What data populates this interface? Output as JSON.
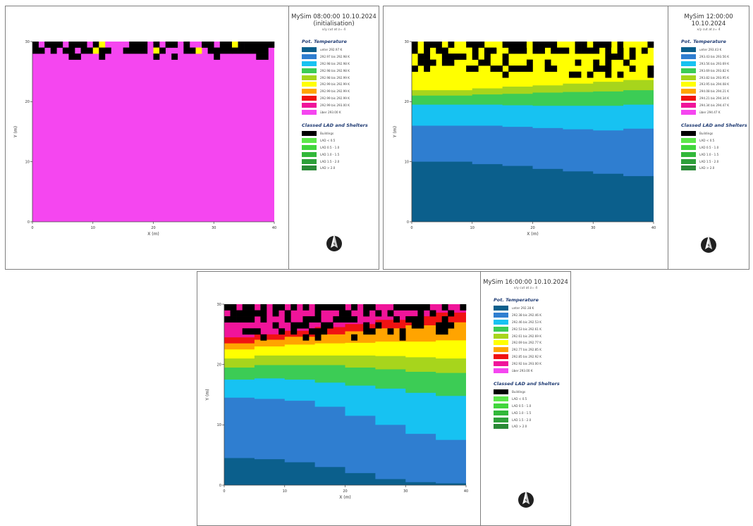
{
  "maps": [
    {
      "title": "MySim 08:00:00 10.10.2024",
      "subtitle": "(initialisation)",
      "cut_label": "x/y cut at z= 4",
      "legend_title_temp": "Pot. Temperature",
      "legend_temp": [
        {
          "label": "unter 292.97 K",
          "color": "#0b5f8c"
        },
        {
          "label": "292.97 bis 292.98 K",
          "color": "#2f7ed0"
        },
        {
          "label": "292.98 bis 292.98 K",
          "color": "#17c2f2"
        },
        {
          "label": "292.98 bis 292.98 K",
          "color": "#3ccc55"
        },
        {
          "label": "292.98 bis 292.99 K",
          "color": "#a7d51c"
        },
        {
          "label": "292.99 bis 292.99 K",
          "color": "#ffff00"
        },
        {
          "label": "292.99 bis 292.99 K",
          "color": "#ffa400"
        },
        {
          "label": "292.99 bis 292.99 K",
          "color": "#f01212"
        },
        {
          "label": "292.99 bis 293.00 K",
          "color": "#f0149a"
        },
        {
          "label": "über 293.00 K",
          "color": "#f546f0"
        }
      ],
      "legend_title_lad": "Classed LAD and Shelters",
      "legend_lad": [
        {
          "label": "Buildings",
          "color": "#000000"
        },
        {
          "label": "LAD < 0.5",
          "color": "#5de84a"
        },
        {
          "label": "LAD 0.5 - 1.0",
          "color": "#41d63c"
        },
        {
          "label": "LAD 1.0 - 1.5",
          "color": "#32b83a"
        },
        {
          "label": "LAD 1.5 - 2.0",
          "color": "#2ea03a"
        },
        {
          "label": "LAD > 2.0",
          "color": "#2b8a37"
        }
      ],
      "chart_data": {
        "type": "heatmap",
        "xlabel": "X (m)",
        "ylabel": "Y (m)",
        "xlim": [
          0,
          40
        ],
        "ylim": [
          0,
          30
        ],
        "xticks": [
          0,
          10,
          20,
          30,
          40
        ],
        "yticks": [
          0,
          10,
          20,
          30
        ],
        "uniform_value": "über 293.00 K",
        "bands": [],
        "north_arrow": "N"
      }
    },
    {
      "title": "MySim 12:00:00 10.10.2024",
      "subtitle": "",
      "cut_label": "x/y cut at z= 4",
      "legend_title_temp": "Pot. Temperature",
      "legend_temp": [
        {
          "label": "unter 293.43 K",
          "color": "#0b5f8c"
        },
        {
          "label": "293.43 bis 293.56 K",
          "color": "#2f7ed0"
        },
        {
          "label": "293.56 bis 293.69 K",
          "color": "#17c2f2"
        },
        {
          "label": "293.69 bis 293.82 K",
          "color": "#3ccc55"
        },
        {
          "label": "293.82 bis 293.95 K",
          "color": "#a7d51c"
        },
        {
          "label": "293.95 bis 294.08 K",
          "color": "#ffff00"
        },
        {
          "label": "294.08 bis 294.21 K",
          "color": "#ffa400"
        },
        {
          "label": "294.21 bis 294.34 K",
          "color": "#f01212"
        },
        {
          "label": "294.34 bis 294.47 K",
          "color": "#f0149a"
        },
        {
          "label": "über 294.47 K",
          "color": "#f546f0"
        }
      ],
      "legend_title_lad": "Classed LAD and Shelters",
      "legend_lad": [
        {
          "label": "Buildings",
          "color": "#000000"
        },
        {
          "label": "LAD < 0.5",
          "color": "#5de84a"
        },
        {
          "label": "LAD 0.5 - 1.0",
          "color": "#41d63c"
        },
        {
          "label": "LAD 1.0 - 1.5",
          "color": "#32b83a"
        },
        {
          "label": "LAD 1.5 - 2.0",
          "color": "#2ea03a"
        },
        {
          "label": "LAD > 2.0",
          "color": "#2b8a37"
        }
      ],
      "chart_data": {
        "type": "heatmap",
        "xlabel": "X (m)",
        "ylabel": "Y (m)",
        "xlim": [
          0,
          40
        ],
        "ylim": [
          0,
          30
        ],
        "xticks": [
          0,
          10,
          20,
          30,
          40
        ],
        "yticks": [
          0,
          10,
          20,
          30
        ],
        "band_x": [
          0,
          5,
          10,
          15,
          20,
          25,
          30,
          35,
          40
        ],
        "bands": [
          {
            "class": 0,
            "top_y": [
              10.0,
              10.0,
              9.6,
              9.3,
              8.8,
              8.4,
              8.0,
              7.6,
              7.3
            ]
          },
          {
            "class": 1,
            "top_y": [
              16.0,
              16.0,
              16.0,
              15.8,
              15.6,
              15.4,
              15.2,
              15.5,
              16.0
            ]
          },
          {
            "class": 2,
            "top_y": [
              19.5,
              19.5,
              19.5,
              19.4,
              19.3,
              19.3,
              19.3,
              19.5,
              19.7
            ]
          },
          {
            "class": 3,
            "top_y": [
              21.0,
              21.0,
              21.2,
              21.3,
              21.5,
              21.6,
              21.7,
              21.9,
              22.0
            ]
          },
          {
            "class": 4,
            "top_y": [
              21.9,
              21.9,
              22.2,
              22.5,
              22.7,
              23.0,
              23.3,
              23.6,
              23.9
            ]
          },
          {
            "class": 5,
            "top_y": [
              30,
              30,
              30,
              30,
              30,
              30,
              30,
              30,
              30
            ]
          },
          {
            "class": 6,
            "top_y": [
              30,
              30,
              30,
              30,
              30,
              30,
              30,
              30,
              30
            ]
          },
          {
            "class": 7,
            "top_y": [
              30,
              30,
              30,
              30,
              30,
              30,
              30,
              30,
              30
            ]
          },
          {
            "class": 8,
            "top_y": [
              30,
              30,
              30,
              30,
              30,
              30,
              30,
              30,
              30
            ]
          }
        ],
        "north_arrow": "N"
      }
    },
    {
      "title": "MySim 16:00:00 10.10.2024",
      "subtitle": "",
      "cut_label": "x/y cut at z= 4",
      "legend_title_temp": "Pot. Temperature",
      "legend_temp": [
        {
          "label": "unter 292.38 K",
          "color": "#0b5f8c"
        },
        {
          "label": "292.38 bis 292.46 K",
          "color": "#2f7ed0"
        },
        {
          "label": "292.46 bis 292.53 K",
          "color": "#17c2f2"
        },
        {
          "label": "292.53 bis 292.61 K",
          "color": "#3ccc55"
        },
        {
          "label": "292.61 bis 292.69 K",
          "color": "#a7d51c"
        },
        {
          "label": "292.69 bis 292.77 K",
          "color": "#ffff00"
        },
        {
          "label": "292.77 bis 292.85 K",
          "color": "#ffa400"
        },
        {
          "label": "292.85 bis 292.92 K",
          "color": "#f01212"
        },
        {
          "label": "292.92 bis 293.00 K",
          "color": "#f0149a"
        },
        {
          "label": "über 293.00 K",
          "color": "#f546f0"
        }
      ],
      "legend_title_lad": "Classed LAD and Shelters",
      "legend_lad": [
        {
          "label": "Buildings",
          "color": "#000000"
        },
        {
          "label": "LAD < 0.5",
          "color": "#5de84a"
        },
        {
          "label": "LAD 0.5 - 1.0",
          "color": "#41d63c"
        },
        {
          "label": "LAD 1.0 - 1.5",
          "color": "#32b83a"
        },
        {
          "label": "LAD 1.5 - 2.0",
          "color": "#2ea03a"
        },
        {
          "label": "LAD > 2.0",
          "color": "#2b8a37"
        }
      ],
      "chart_data": {
        "type": "heatmap",
        "xlabel": "X (m)",
        "ylabel": "Y (m)",
        "xlim": [
          0,
          40
        ],
        "ylim": [
          0,
          30
        ],
        "xticks": [
          0,
          10,
          20,
          30,
          40
        ],
        "yticks": [
          0,
          10,
          20,
          30
        ],
        "band_x": [
          0,
          5,
          10,
          15,
          20,
          25,
          30,
          35,
          40
        ],
        "bands": [
          {
            "class": 0,
            "top_y": [
              4.5,
              4.3,
              3.8,
              3.0,
              2.0,
              1.0,
              0.5,
              0.3,
              0.2
            ]
          },
          {
            "class": 1,
            "top_y": [
              14.5,
              14.3,
              14.0,
              13.0,
              11.5,
              10.0,
              8.5,
              7.5,
              6.5
            ]
          },
          {
            "class": 2,
            "top_y": [
              17.5,
              17.7,
              17.5,
              17.0,
              16.5,
              16.0,
              15.3,
              14.8,
              14.2
            ]
          },
          {
            "class": 3,
            "top_y": [
              19.5,
              19.9,
              19.9,
              19.9,
              19.5,
              19.2,
              18.8,
              18.6,
              18.3
            ]
          },
          {
            "class": 4,
            "top_y": [
              21.0,
              21.5,
              21.5,
              21.5,
              21.5,
              21.4,
              21.2,
              21.0,
              20.8
            ]
          },
          {
            "class": 5,
            "top_y": [
              22.5,
              23.0,
              23.3,
              23.5,
              23.6,
              23.8,
              23.8,
              24.0,
              24.0
            ]
          },
          {
            "class": 6,
            "top_y": [
              23.5,
              24.1,
              24.6,
              25.0,
              25.5,
              26.0,
              26.5,
              27.0,
              27.5
            ]
          },
          {
            "class": 7,
            "top_y": [
              24.5,
              25.0,
              25.6,
              26.2,
              26.7,
              27.4,
              28.0,
              28.6,
              29.2
            ]
          },
          {
            "class": 8,
            "top_y": [
              30,
              30,
              30,
              30,
              30,
              30,
              30,
              30,
              30
            ]
          }
        ],
        "north_arrow": "N"
      }
    }
  ]
}
